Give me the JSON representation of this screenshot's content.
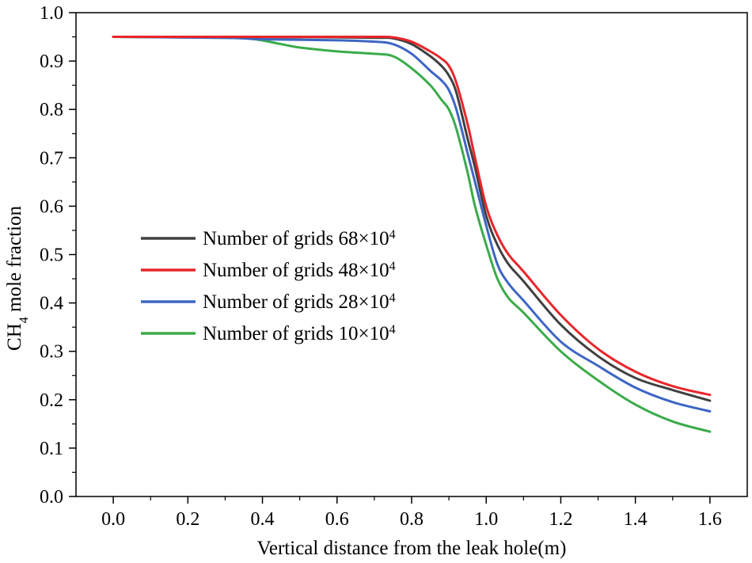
{
  "chart_data": {
    "type": "line",
    "title": "",
    "xlabel": "Vertical distance from the leak hole(m)",
    "ylabel": {
      "prefix": "CH",
      "subscript": "4",
      "suffix": " mole fraction"
    },
    "xlim": [
      -0.1,
      1.7
    ],
    "ylim": [
      0.0,
      1.0
    ],
    "x_ticks": [
      0.0,
      0.2,
      0.4,
      0.6,
      0.8,
      1.0,
      1.2,
      1.4,
      1.6
    ],
    "x_tick_labels": [
      "0.0",
      "0.2",
      "0.4",
      "0.6",
      "0.8",
      "1.0",
      "1.2",
      "1.4",
      "1.6"
    ],
    "y_ticks": [
      0.0,
      0.1,
      0.2,
      0.3,
      0.4,
      0.5,
      0.6,
      0.7,
      0.8,
      0.9,
      1.0
    ],
    "y_tick_labels": [
      "0.0",
      "0.1",
      "0.2",
      "0.3",
      "0.4",
      "0.5",
      "0.6",
      "0.7",
      "0.8",
      "0.9",
      "1.0"
    ],
    "legend_position": "center-left",
    "series": [
      {
        "name": "Number of grids 68×10",
        "superscript": "4",
        "color": "#404040",
        "points": [
          [
            0.0,
            0.95
          ],
          [
            0.3,
            0.95
          ],
          [
            0.6,
            0.949
          ],
          [
            0.7,
            0.948
          ],
          [
            0.75,
            0.947
          ],
          [
            0.8,
            0.935
          ],
          [
            0.85,
            0.91
          ],
          [
            0.88,
            0.89
          ],
          [
            0.9,
            0.87
          ],
          [
            0.92,
            0.835
          ],
          [
            0.95,
            0.74
          ],
          [
            0.97,
            0.68
          ],
          [
            1.0,
            0.58
          ],
          [
            1.03,
            0.52
          ],
          [
            1.06,
            0.48
          ],
          [
            1.1,
            0.445
          ],
          [
            1.2,
            0.355
          ],
          [
            1.3,
            0.29
          ],
          [
            1.4,
            0.245
          ],
          [
            1.5,
            0.22
          ],
          [
            1.6,
            0.198
          ]
        ]
      },
      {
        "name": "Number of grids 48×10",
        "superscript": "4",
        "color": "#e8262a",
        "points": [
          [
            0.0,
            0.95
          ],
          [
            0.3,
            0.95
          ],
          [
            0.6,
            0.95
          ],
          [
            0.7,
            0.95
          ],
          [
            0.75,
            0.949
          ],
          [
            0.8,
            0.94
          ],
          [
            0.85,
            0.92
          ],
          [
            0.88,
            0.905
          ],
          [
            0.9,
            0.89
          ],
          [
            0.92,
            0.855
          ],
          [
            0.95,
            0.77
          ],
          [
            0.97,
            0.7
          ],
          [
            1.0,
            0.6
          ],
          [
            1.03,
            0.54
          ],
          [
            1.06,
            0.5
          ],
          [
            1.1,
            0.465
          ],
          [
            1.2,
            0.375
          ],
          [
            1.3,
            0.305
          ],
          [
            1.4,
            0.258
          ],
          [
            1.5,
            0.228
          ],
          [
            1.6,
            0.21
          ]
        ]
      },
      {
        "name": "Number of grids 28×10",
        "superscript": "4",
        "color": "#3d66c4",
        "points": [
          [
            0.0,
            0.95
          ],
          [
            0.3,
            0.948
          ],
          [
            0.4,
            0.945
          ],
          [
            0.6,
            0.943
          ],
          [
            0.7,
            0.94
          ],
          [
            0.75,
            0.935
          ],
          [
            0.8,
            0.915
          ],
          [
            0.85,
            0.88
          ],
          [
            0.88,
            0.86
          ],
          [
            0.9,
            0.84
          ],
          [
            0.92,
            0.8
          ],
          [
            0.95,
            0.71
          ],
          [
            0.97,
            0.65
          ],
          [
            1.0,
            0.56
          ],
          [
            1.03,
            0.48
          ],
          [
            1.06,
            0.44
          ],
          [
            1.1,
            0.405
          ],
          [
            1.2,
            0.32
          ],
          [
            1.3,
            0.27
          ],
          [
            1.4,
            0.225
          ],
          [
            1.5,
            0.195
          ],
          [
            1.6,
            0.176
          ]
        ]
      },
      {
        "name": "Number of grids 10×10",
        "superscript": "4",
        "color": "#3aab4a",
        "points": [
          [
            0.0,
            0.95
          ],
          [
            0.3,
            0.948
          ],
          [
            0.38,
            0.945
          ],
          [
            0.45,
            0.935
          ],
          [
            0.5,
            0.928
          ],
          [
            0.6,
            0.92
          ],
          [
            0.7,
            0.915
          ],
          [
            0.75,
            0.91
          ],
          [
            0.8,
            0.885
          ],
          [
            0.85,
            0.85
          ],
          [
            0.88,
            0.82
          ],
          [
            0.9,
            0.8
          ],
          [
            0.92,
            0.76
          ],
          [
            0.95,
            0.67
          ],
          [
            0.97,
            0.6
          ],
          [
            1.0,
            0.52
          ],
          [
            1.03,
            0.45
          ],
          [
            1.06,
            0.41
          ],
          [
            1.1,
            0.38
          ],
          [
            1.2,
            0.3
          ],
          [
            1.3,
            0.24
          ],
          [
            1.4,
            0.19
          ],
          [
            1.5,
            0.155
          ],
          [
            1.6,
            0.134
          ]
        ]
      }
    ]
  }
}
